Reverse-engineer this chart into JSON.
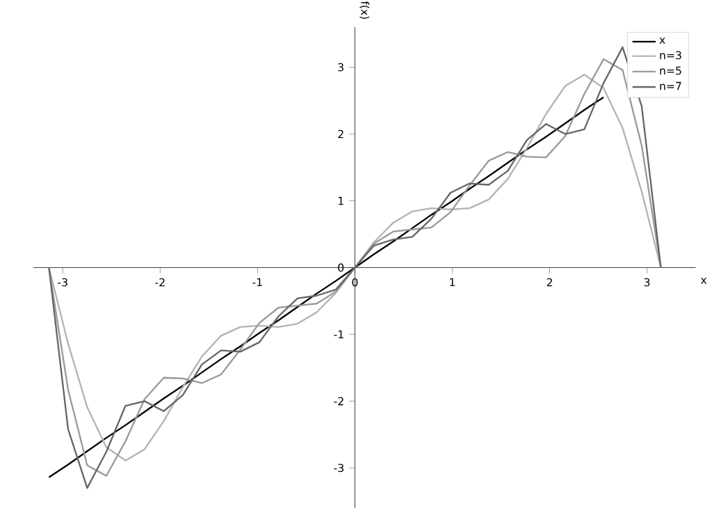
{
  "chart_data": {
    "type": "line",
    "xlabel": "x",
    "ylabel": "f(x)",
    "x": [
      -3.142,
      -2.945,
      -2.749,
      -2.553,
      -2.356,
      -2.16,
      -1.963,
      -1.767,
      -1.571,
      -1.374,
      -1.178,
      -0.982,
      -0.785,
      -0.589,
      -0.393,
      -0.196,
      0,
      0.196,
      0.393,
      0.589,
      0.785,
      0.982,
      1.178,
      1.374,
      1.571,
      1.767,
      1.963,
      2.16,
      2.356,
      2.553,
      2.749,
      2.945,
      3.142
    ],
    "series": [
      {
        "name": "x",
        "color": "#000000",
        "values": [
          -3.14,
          -2.95,
          -2.75,
          -2.55,
          -2.36,
          -2.16,
          -1.96,
          -1.77,
          -1.57,
          -1.37,
          -1.18,
          -0.98,
          -0.79,
          -0.59,
          -0.39,
          -0.2,
          0,
          0.2,
          0.39,
          0.59,
          0.79,
          0.98,
          1.18,
          1.37,
          1.57,
          1.77,
          1.96,
          2.16,
          2.36,
          2.55,
          null,
          null,
          null
        ]
      },
      {
        "name": "n=3",
        "color": "#b3b3b3",
        "values": [
          0,
          -1.14,
          -2.09,
          -2.69,
          -2.89,
          -2.72,
          -2.3,
          -1.79,
          -1.33,
          -1.02,
          -0.89,
          -0.87,
          -0.89,
          -0.84,
          -0.67,
          -0.38,
          0,
          0.38,
          0.67,
          0.84,
          0.89,
          0.87,
          0.89,
          1.02,
          1.33,
          1.79,
          2.3,
          2.72,
          2.89,
          2.69,
          2.09,
          1.14,
          0
        ]
      },
      {
        "name": "n=5",
        "color": "#999999",
        "values": [
          0,
          -1.83,
          -2.96,
          -3.12,
          -2.6,
          -1.97,
          -1.65,
          -1.66,
          -1.73,
          -1.6,
          -1.23,
          -0.83,
          -0.6,
          -0.57,
          -0.54,
          -0.36,
          0,
          0.36,
          0.54,
          0.57,
          0.6,
          0.83,
          1.23,
          1.6,
          1.73,
          1.66,
          1.65,
          1.97,
          2.6,
          3.12,
          2.96,
          1.83,
          0
        ]
      },
      {
        "name": "n=7",
        "color": "#666666",
        "values": [
          0,
          -2.42,
          -3.3,
          -2.76,
          -2.07,
          -2.0,
          -2.15,
          -1.91,
          -1.45,
          -1.24,
          -1.26,
          -1.12,
          -0.73,
          -0.46,
          -0.42,
          -0.33,
          0,
          0.33,
          0.42,
          0.46,
          0.73,
          1.12,
          1.26,
          1.24,
          1.45,
          1.91,
          2.15,
          2.0,
          2.07,
          2.76,
          3.3,
          2.42,
          0
        ]
      }
    ],
    "xlim": [
      -3.3,
      3.5
    ],
    "ylim": [
      -3.6,
      3.6
    ],
    "xticks": [
      -3,
      -2,
      -1,
      0,
      1,
      2,
      3
    ],
    "yticks": [
      -3,
      -2,
      -1,
      0,
      1,
      2,
      3
    ],
    "legend": "top right",
    "marker": "none",
    "line_style": "solid"
  }
}
